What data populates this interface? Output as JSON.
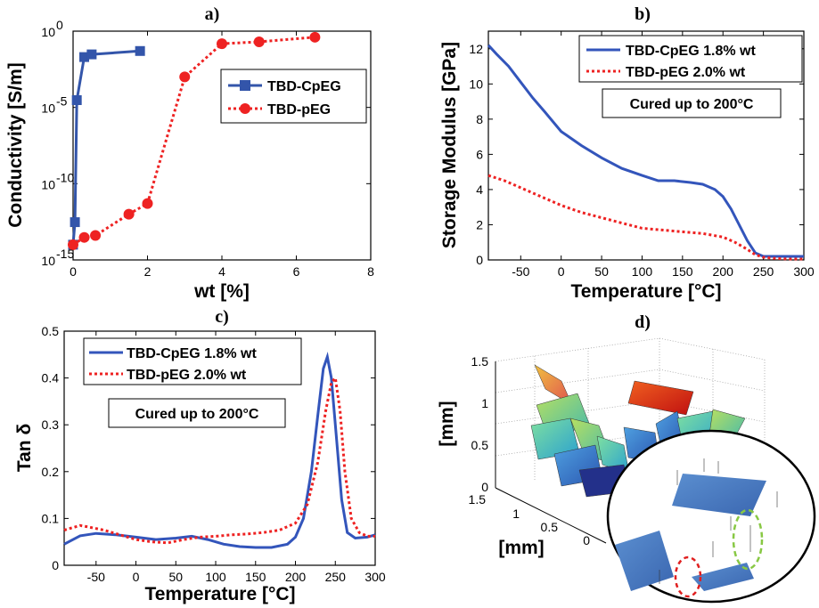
{
  "chart_data": [
    {
      "panel": "a)",
      "type": "line",
      "xlabel": "wt [%]",
      "ylabel": "Conductivity [S/m]",
      "yscale": "log",
      "xlim": [
        0,
        8
      ],
      "ylim": [
        1e-15,
        1
      ],
      "xticks": [
        "0",
        "2",
        "4",
        "6",
        "8"
      ],
      "yticks": [
        {
          "mant": "10",
          "exp": "0",
          "value": 1
        },
        {
          "mant": "10",
          "exp": "-5",
          "value": 1e-05
        },
        {
          "mant": "10",
          "exp": "-10",
          "value": 1e-10
        },
        {
          "mant": "10",
          "exp": "-15",
          "value": 1e-15
        }
      ],
      "legend_position": "top-right",
      "series": [
        {
          "name": "TBD-CpEG",
          "color": "#3355aa",
          "marker": "square",
          "style": "solid",
          "x": [
            0.0,
            0.05,
            0.1,
            0.3,
            0.5,
            1.8
          ],
          "y": [
            1e-14,
            3e-13,
            3e-05,
            0.02,
            0.03,
            0.05
          ]
        },
        {
          "name": "TBD-pEG",
          "color": "#ee2222",
          "marker": "circle",
          "style": "dotted",
          "x": [
            0.0,
            0.3,
            0.6,
            1.5,
            2.0,
            3.0,
            4.0,
            5.0,
            6.5
          ],
          "y": [
            1e-14,
            3e-14,
            4e-14,
            1e-12,
            5e-12,
            0.001,
            0.15,
            0.2,
            0.4
          ]
        }
      ]
    },
    {
      "panel": "b)",
      "type": "line",
      "xlabel": "Temperature [°C]",
      "ylabel": "Storage Modulus [GPa]",
      "xlim": [
        -90,
        300
      ],
      "ylim": [
        0,
        13
      ],
      "xticks": [
        "-50",
        "0",
        "50",
        "100",
        "150",
        "200",
        "250",
        "300"
      ],
      "yticks": [
        "0",
        "2",
        "4",
        "6",
        "8",
        "10",
        "12"
      ],
      "annotation": "Cured up to 200°C",
      "legend_position": "top-right",
      "series": [
        {
          "name": "TBD-CpEG 1.8% wt",
          "color": "#3355bb",
          "style": "solid",
          "x": [
            -90,
            -80,
            -65,
            -50,
            -35,
            -20,
            0,
            25,
            50,
            75,
            100,
            120,
            140,
            160,
            175,
            190,
            200,
            210,
            220,
            230,
            240,
            250,
            260,
            280,
            300
          ],
          "y": [
            12.2,
            11.7,
            11.0,
            10.1,
            9.2,
            8.4,
            7.3,
            6.5,
            5.8,
            5.2,
            4.8,
            4.5,
            4.5,
            4.4,
            4.3,
            4.0,
            3.6,
            2.9,
            2.0,
            1.1,
            0.4,
            0.2,
            0.2,
            0.2,
            0.2
          ]
        },
        {
          "name": "TBD-pEG 2.0% wt",
          "color": "#ee2222",
          "style": "dotted",
          "x": [
            -90,
            -70,
            -50,
            -25,
            0,
            25,
            50,
            75,
            100,
            125,
            150,
            175,
            200,
            215,
            230,
            240,
            250,
            260,
            280,
            300
          ],
          "y": [
            4.8,
            4.5,
            4.1,
            3.6,
            3.1,
            2.7,
            2.4,
            2.1,
            1.8,
            1.7,
            1.6,
            1.5,
            1.3,
            1.0,
            0.6,
            0.3,
            0.15,
            0.1,
            0.05,
            0.05
          ]
        }
      ]
    },
    {
      "panel": "c)",
      "type": "line",
      "xlabel": "Temperature [°C]",
      "ylabel": "Tan δ",
      "xlim": [
        -90,
        300
      ],
      "ylim": [
        0,
        0.5
      ],
      "xticks": [
        "-50",
        "0",
        "50",
        "100",
        "150",
        "200",
        "250",
        "300"
      ],
      "yticks": [
        "0",
        "0.1",
        "0.2",
        "0.3",
        "0.4",
        "0.5"
      ],
      "annotation": "Cured up to 200°C",
      "legend_position": "top-left",
      "series": [
        {
          "name": "TBD-CpEG 1.8% wt",
          "color": "#3355bb",
          "style": "solid",
          "x": [
            -90,
            -70,
            -50,
            -25,
            0,
            25,
            50,
            70,
            90,
            110,
            130,
            150,
            170,
            190,
            200,
            210,
            220,
            228,
            235,
            240,
            245,
            250,
            258,
            265,
            275,
            290,
            300
          ],
          "y": [
            0.045,
            0.063,
            0.068,
            0.065,
            0.06,
            0.055,
            0.058,
            0.062,
            0.055,
            0.045,
            0.04,
            0.038,
            0.038,
            0.045,
            0.06,
            0.1,
            0.2,
            0.32,
            0.42,
            0.445,
            0.4,
            0.3,
            0.14,
            0.07,
            0.058,
            0.06,
            0.065
          ]
        },
        {
          "name": "TBD-pEG 2.0% wt",
          "color": "#ee2222",
          "style": "dotted",
          "x": [
            -90,
            -70,
            -60,
            -40,
            -20,
            0,
            20,
            40,
            60,
            80,
            100,
            120,
            140,
            160,
            180,
            200,
            215,
            228,
            238,
            245,
            250,
            256,
            262,
            270,
            280,
            290,
            300
          ],
          "y": [
            0.075,
            0.085,
            0.082,
            0.075,
            0.065,
            0.055,
            0.05,
            0.048,
            0.055,
            0.06,
            0.062,
            0.065,
            0.067,
            0.07,
            0.075,
            0.09,
            0.13,
            0.22,
            0.33,
            0.39,
            0.4,
            0.33,
            0.2,
            0.1,
            0.07,
            0.062,
            0.062
          ]
        }
      ]
    },
    {
      "panel": "d)",
      "type": "other",
      "zlabel": "[mm]",
      "ylabel": "[mm]",
      "zticks": [
        "0",
        "0.5",
        "1",
        "1.5"
      ],
      "yticks": [
        "0",
        "0.5",
        "1",
        "1.5"
      ]
    }
  ]
}
